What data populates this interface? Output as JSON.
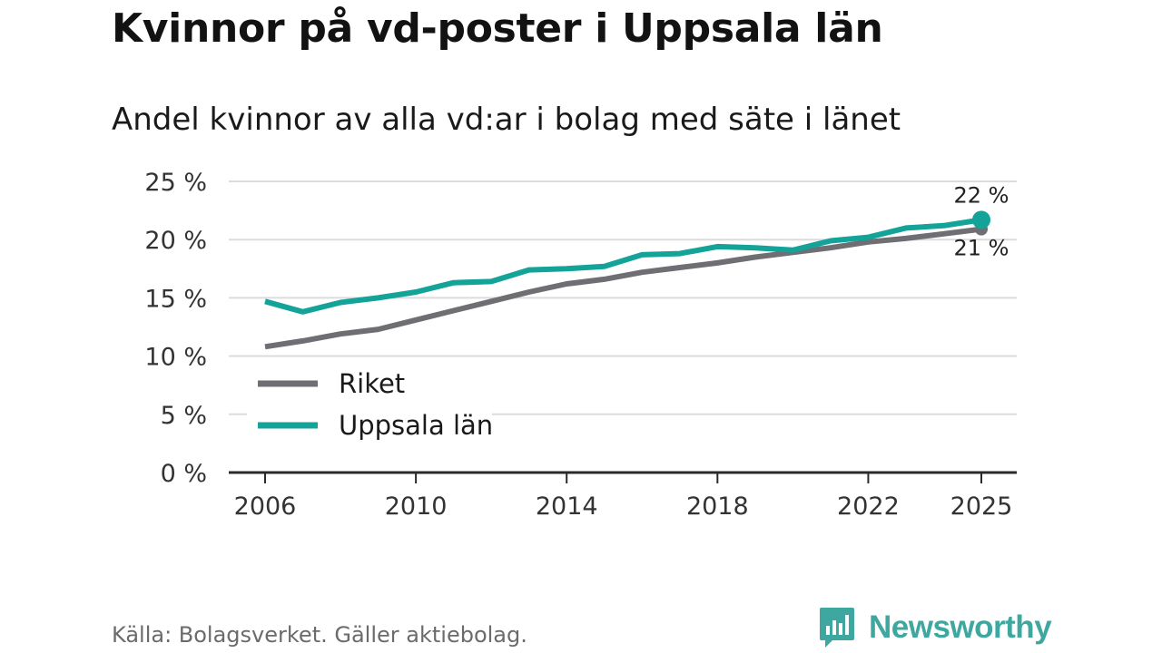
{
  "title": "Kvinnor på vd-poster i Uppsala län",
  "subtitle": "Andel kvinnor av alla vd:ar i bolag med säte i länet",
  "source": "Källa: Bolagsverket. Gäller aktiebolag.",
  "brand": {
    "name": "Newsworthy",
    "color": "#3ea8a0"
  },
  "chart_data": {
    "type": "line",
    "x": [
      2006,
      2007,
      2008,
      2009,
      2010,
      2011,
      2012,
      2013,
      2014,
      2015,
      2016,
      2017,
      2018,
      2019,
      2020,
      2021,
      2022,
      2023,
      2024,
      2025
    ],
    "series": [
      {
        "name": "Riket",
        "color": "#6e6e73",
        "values": [
          10.8,
          11.3,
          11.9,
          12.3,
          13.1,
          13.9,
          14.7,
          15.5,
          16.2,
          16.6,
          17.2,
          17.6,
          18.0,
          18.5,
          18.9,
          19.3,
          19.8,
          20.1,
          20.5,
          20.9
        ],
        "end_label": "21 %"
      },
      {
        "name": "Uppsala län",
        "color": "#14a398",
        "values": [
          14.7,
          13.8,
          14.6,
          15.0,
          15.5,
          16.3,
          16.4,
          17.4,
          17.5,
          17.7,
          18.7,
          18.8,
          19.4,
          19.3,
          19.1,
          19.9,
          20.2,
          21.0,
          21.2,
          21.7
        ],
        "end_label": "22 %"
      }
    ],
    "ylim": [
      0,
      25
    ],
    "yticks": [
      0,
      5,
      10,
      15,
      20,
      25
    ],
    "ytick_labels": [
      "0 %",
      "5 %",
      "10 %",
      "15 %",
      "20 %",
      "25 %"
    ],
    "xticks": [
      2006,
      2010,
      2014,
      2018,
      2022,
      2025
    ],
    "xtick_labels": [
      "2006",
      "2010",
      "2014",
      "2018",
      "2022",
      "2025"
    ],
    "xlabel": "",
    "ylabel": "",
    "grid": true,
    "legend_position": "lower-left"
  }
}
